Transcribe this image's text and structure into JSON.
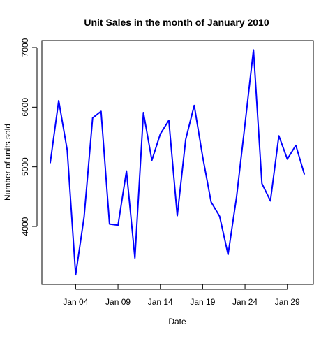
{
  "chart_data": {
    "type": "line",
    "title": "Unit Sales in the month of January 2010",
    "xlabel": "Date",
    "ylabel": "Number of units sold",
    "x": [
      "2010-01-01",
      "2010-01-02",
      "2010-01-03",
      "2010-01-04",
      "2010-01-05",
      "2010-01-06",
      "2010-01-07",
      "2010-01-08",
      "2010-01-09",
      "2010-01-10",
      "2010-01-11",
      "2010-01-12",
      "2010-01-13",
      "2010-01-14",
      "2010-01-15",
      "2010-01-16",
      "2010-01-17",
      "2010-01-18",
      "2010-01-19",
      "2010-01-20",
      "2010-01-21",
      "2010-01-22",
      "2010-01-23",
      "2010-01-24",
      "2010-01-25",
      "2010-01-26",
      "2010-01-27",
      "2010-01-28",
      "2010-01-29",
      "2010-01-30",
      "2010-01-31"
    ],
    "series": [
      {
        "values": [
          5070,
          6110,
          5280,
          3190,
          4160,
          5820,
          5930,
          4040,
          4020,
          4930,
          3470,
          5910,
          5110,
          5550,
          5780,
          4180,
          5460,
          6030,
          5170,
          4410,
          4170,
          3530,
          4490,
          5720,
          6960,
          4720,
          4430,
          5520,
          5130,
          5360,
          4880
        ],
        "color": "#0000ff"
      }
    ],
    "x_ticks": [
      {
        "date": "2010-01-04",
        "label": "Jan 04"
      },
      {
        "date": "2010-01-09",
        "label": "Jan 09"
      },
      {
        "date": "2010-01-14",
        "label": "Jan 14"
      },
      {
        "date": "2010-01-19",
        "label": "Jan 19"
      },
      {
        "date": "2010-01-24",
        "label": "Jan 24"
      },
      {
        "date": "2010-01-29",
        "label": "Jan 29"
      }
    ],
    "y_ticks": [
      {
        "value": 4000,
        "label": "4000"
      },
      {
        "value": 5000,
        "label": "5000"
      },
      {
        "value": 6000,
        "label": "6000"
      },
      {
        "value": 7000,
        "label": "7000"
      }
    ],
    "xlim": [
      "2010-01-01",
      "2010-01-31"
    ],
    "ylim": [
      3190,
      6960
    ],
    "grid": false,
    "legend": "none"
  }
}
